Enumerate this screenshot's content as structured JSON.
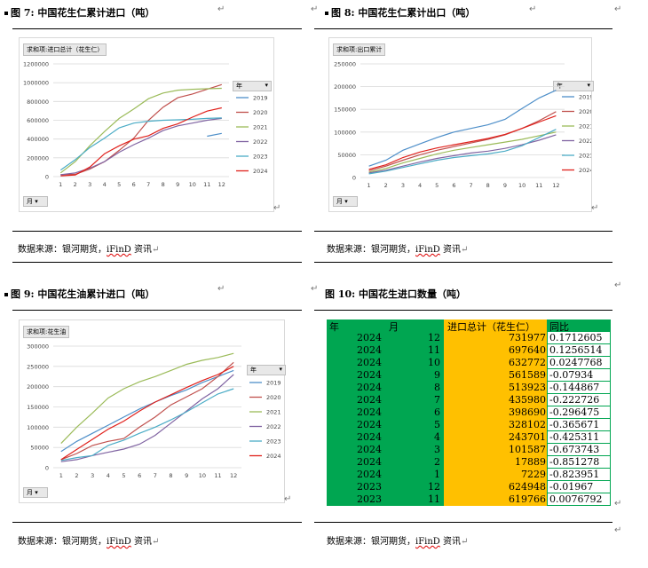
{
  "fig7": {
    "title": "图 7:  中国花生仁累计进口（吨）",
    "pivot": "求和项:进口总计（花生仁）",
    "year_header": "年",
    "month_dropdown": "月",
    "chart_data": {
      "type": "line",
      "title": "",
      "xlabel": "",
      "ylabel": "",
      "ylim": [
        0,
        1200000
      ],
      "categories": [
        1,
        2,
        3,
        4,
        5,
        6,
        7,
        8,
        9,
        10,
        11,
        12
      ],
      "yticks": [
        "0",
        "200000",
        "400000",
        "600000",
        "800000",
        "1000000",
        "1200000"
      ],
      "series": [
        {
          "name": "2019",
          "color": "#4e8fc9",
          "values": [
            null,
            null,
            null,
            null,
            null,
            null,
            null,
            null,
            null,
            null,
            430000,
            460000
          ]
        },
        {
          "name": "2020",
          "color": "#c0504d",
          "values": [
            20000,
            25000,
            80000,
            160000,
            280000,
            410000,
            600000,
            740000,
            840000,
            880000,
            930000,
            980000
          ]
        },
        {
          "name": "2021",
          "color": "#9bbb59",
          "values": [
            40000,
            160000,
            330000,
            480000,
            620000,
            720000,
            830000,
            890000,
            920000,
            930000,
            935000,
            940000
          ]
        },
        {
          "name": "2022",
          "color": "#8064a2",
          "values": [
            20000,
            40000,
            90000,
            160000,
            260000,
            340000,
            410000,
            490000,
            540000,
            570000,
            600000,
            620000
          ]
        },
        {
          "name": "2023",
          "color": "#4bacc6",
          "values": [
            70000,
            180000,
            310000,
            410000,
            520000,
            570000,
            590000,
            600000,
            605000,
            610000,
            620000,
            625000
          ]
        },
        {
          "name": "2024",
          "color": "#e0201b",
          "values": [
            7229,
            17889,
            101587,
            243701,
            328102,
            398690,
            435980,
            513923,
            561589,
            632772,
            697640,
            731977
          ]
        }
      ]
    }
  },
  "fig8": {
    "title": "图 8:  中国花生仁累计出口（吨）",
    "pivot": "求和项:出口累计",
    "year_header": "年",
    "month_dropdown": "月",
    "chart_data": {
      "type": "line",
      "title": "",
      "xlabel": "",
      "ylabel": "",
      "ylim": [
        0,
        250000
      ],
      "categories": [
        1,
        2,
        3,
        4,
        5,
        6,
        7,
        8,
        9,
        10,
        11,
        12
      ],
      "yticks": [
        "0",
        "50000",
        "100000",
        "150000",
        "200000",
        "250000"
      ],
      "series": [
        {
          "name": "2019",
          "color": "#4e8fc9",
          "values": [
            25000,
            38000,
            60000,
            74000,
            88000,
            100000,
            108000,
            116000,
            128000,
            152000,
            175000,
            192000
          ]
        },
        {
          "name": "2020",
          "color": "#c0504d",
          "values": [
            15000,
            25000,
            38000,
            50000,
            60000,
            68000,
            76000,
            84000,
            94000,
            108000,
            125000,
            145000
          ]
        },
        {
          "name": "2021",
          "color": "#9bbb59",
          "values": [
            12000,
            20000,
            32000,
            42000,
            52000,
            60000,
            66000,
            72000,
            78000,
            84000,
            92000,
            100000
          ]
        },
        {
          "name": "2022",
          "color": "#8064a2",
          "values": [
            10000,
            16000,
            25000,
            34000,
            42000,
            48000,
            54000,
            58000,
            64000,
            72000,
            82000,
            94000
          ]
        },
        {
          "name": "2023",
          "color": "#4bacc6",
          "values": [
            8000,
            14000,
            22000,
            30000,
            38000,
            44000,
            48000,
            52000,
            58000,
            70000,
            88000,
            106000
          ]
        },
        {
          "name": "2024",
          "color": "#e0201b",
          "values": [
            18000,
            28000,
            44000,
            56000,
            65000,
            72000,
            79000,
            86000,
            95000,
            108000,
            122000,
            136000
          ]
        }
      ]
    }
  },
  "fig9": {
    "title": "图 9:  中国花生油累计进口（吨）",
    "pivot": "求和项:花生油",
    "year_header": "年",
    "month_dropdown": "月",
    "chart_data": {
      "type": "line",
      "title": "",
      "xlabel": "",
      "ylabel": "",
      "ylim": [
        0,
        300000
      ],
      "categories": [
        1,
        2,
        3,
        4,
        5,
        6,
        7,
        8,
        9,
        10,
        11,
        12
      ],
      "yticks": [
        "0",
        "50000",
        "100000",
        "150000",
        "200000",
        "250000",
        "300000"
      ],
      "series": [
        {
          "name": "2019",
          "color": "#4e8fc9",
          "values": [
            40000,
            65000,
            85000,
            105000,
            125000,
            145000,
            162000,
            178000,
            192000,
            210000,
            225000,
            240000
          ]
        },
        {
          "name": "2020",
          "color": "#c0504d",
          "values": [
            20000,
            35000,
            55000,
            65000,
            72000,
            100000,
            125000,
            155000,
            175000,
            195000,
            225000,
            260000
          ]
        },
        {
          "name": "2021",
          "color": "#9bbb59",
          "values": [
            60000,
            100000,
            135000,
            172000,
            195000,
            212000,
            225000,
            240000,
            255000,
            265000,
            272000,
            282000
          ]
        },
        {
          "name": "2022",
          "color": "#8064a2",
          "values": [
            15000,
            20000,
            30000,
            38000,
            46000,
            58000,
            80000,
            110000,
            140000,
            170000,
            195000,
            230000
          ]
        },
        {
          "name": "2023",
          "color": "#4bacc6",
          "values": [
            18000,
            25000,
            30000,
            55000,
            68000,
            85000,
            100000,
            118000,
            138000,
            160000,
            182000,
            195000
          ]
        },
        {
          "name": "2024",
          "color": "#e0201b",
          "values": [
            20000,
            45000,
            70000,
            95000,
            115000,
            140000,
            162000,
            180000,
            198000,
            215000,
            230000,
            250000
          ]
        }
      ]
    }
  },
  "fig10": {
    "title": "图 10:  中国花生进口数量（吨）",
    "header": {
      "year": "年",
      "month": "月",
      "total": "进口总计（花生仁）",
      "yoy": "同比"
    },
    "rows": [
      {
        "year": "2024",
        "month": "12",
        "total": "731977",
        "yoy": "0.1712605"
      },
      {
        "year": "2024",
        "month": "11",
        "total": "697640",
        "yoy": "0.1256514"
      },
      {
        "year": "2024",
        "month": "10",
        "total": "632772",
        "yoy": "0.0247768"
      },
      {
        "year": "2024",
        "month": "9",
        "total": "561589",
        "yoy": "-0.07934"
      },
      {
        "year": "2024",
        "month": "8",
        "total": "513923",
        "yoy": "-0.144867"
      },
      {
        "year": "2024",
        "month": "7",
        "total": "435980",
        "yoy": "-0.222726"
      },
      {
        "year": "2024",
        "month": "6",
        "total": "398690",
        "yoy": "-0.296475"
      },
      {
        "year": "2024",
        "month": "5",
        "total": "328102",
        "yoy": "-0.365671"
      },
      {
        "year": "2024",
        "month": "4",
        "total": "243701",
        "yoy": "-0.425311"
      },
      {
        "year": "2024",
        "month": "3",
        "total": "101587",
        "yoy": "-0.673743"
      },
      {
        "year": "2024",
        "month": "2",
        "total": "17889",
        "yoy": "-0.851278"
      },
      {
        "year": "2024",
        "month": "1",
        "total": "7229",
        "yoy": "-0.823951"
      },
      {
        "year": "2023",
        "month": "12",
        "total": "624948",
        "yoy": "-0.01967"
      },
      {
        "year": "2023",
        "month": "11",
        "total": "619766",
        "yoy": "0.0076792"
      }
    ]
  },
  "source": {
    "prefix": "数据来源：银河期货，",
    "brand": "iFinD",
    "suffix": " 资讯"
  }
}
